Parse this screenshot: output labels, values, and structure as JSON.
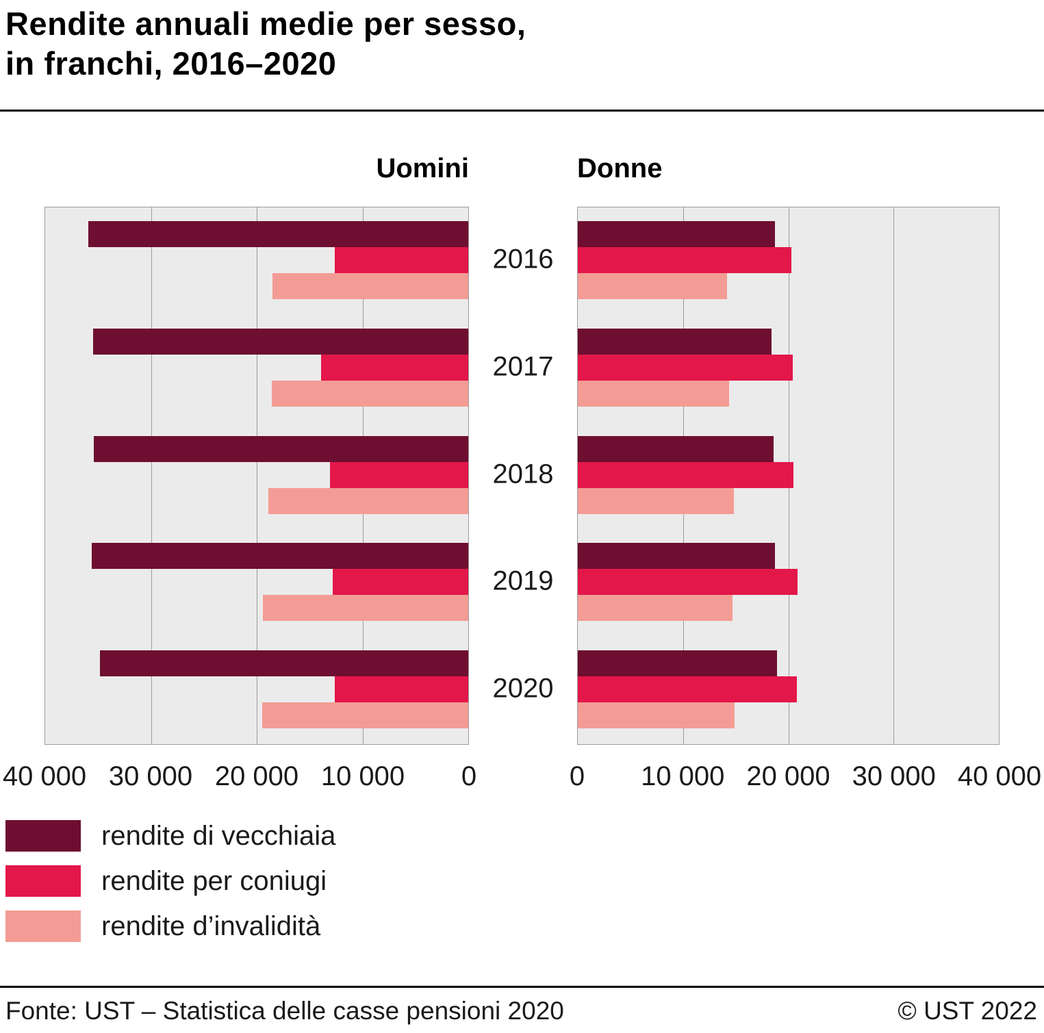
{
  "title": {
    "line1": "Rendite annuali medie per sesso,",
    "line2": "in franchi, 2016–2020"
  },
  "chart_data": {
    "type": "bar",
    "orientation": "horizontal",
    "layout": "back-to-back pyramid, two panels",
    "grid": true,
    "plot_background": "#ebebeb",
    "gridline_color": "#9b9b9b",
    "categories": [
      "2016",
      "2017",
      "2018",
      "2019",
      "2020"
    ],
    "xlim": [
      0,
      40000
    ],
    "x_ticks_left": [
      "40 000",
      "30 000",
      "20 000",
      "10 000",
      "0"
    ],
    "x_ticks_right": [
      "0",
      "10 000",
      "20 000",
      "30 000",
      "40 000"
    ],
    "panels": [
      {
        "name": "Uomini",
        "direction": "left",
        "series": [
          {
            "name": "rendite di vecchiaia",
            "values": [
              35900,
              35500,
              35400,
              35600,
              34800
            ]
          },
          {
            "name": "rendite per coniugi",
            "values": [
              12600,
              13900,
              13100,
              12800,
              12600
            ]
          },
          {
            "name": "rendite d’invalidità",
            "values": [
              18500,
              18600,
              18900,
              19400,
              19500
            ]
          }
        ]
      },
      {
        "name": "Donne",
        "direction": "right",
        "series": [
          {
            "name": "rendite di vecchiaia",
            "values": [
              18700,
              18400,
              18600,
              18700,
              18900
            ]
          },
          {
            "name": "rendite per coniugi",
            "values": [
              20300,
              20400,
              20500,
              20900,
              20800
            ]
          },
          {
            "name": "rendite d’invalidità",
            "values": [
              14200,
              14400,
              14800,
              14700,
              14900
            ]
          }
        ]
      }
    ]
  },
  "legend": [
    {
      "label": "rendite di vecchiaia",
      "color": "#6e0e31"
    },
    {
      "label": "rendite per coniugi",
      "color": "#e3174a"
    },
    {
      "label": "rendite d’invalidità",
      "color": "#f39c95"
    }
  ],
  "footer": {
    "source": "Fonte: UST – Statistica delle casse pensioni 2020",
    "copyright": "© UST 2022"
  }
}
